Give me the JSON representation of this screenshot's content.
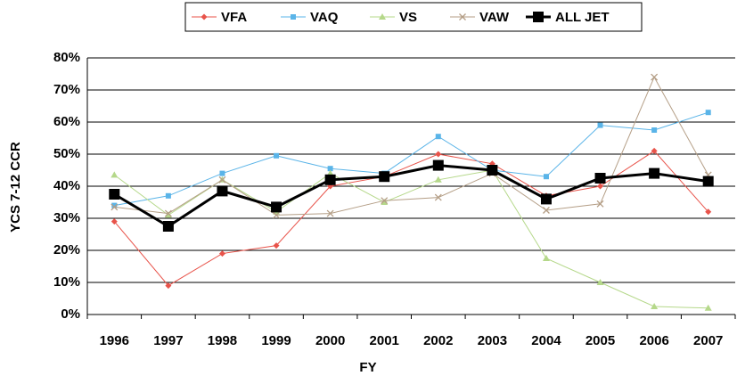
{
  "chart_data": {
    "type": "line",
    "y_label": "YCS 7-12 CCR",
    "x_label": "FY",
    "categories": [
      "1996",
      "1997",
      "1998",
      "1999",
      "2000",
      "2001",
      "2002",
      "2003",
      "2004",
      "2005",
      "2006",
      "2007"
    ],
    "series": [
      {
        "name": "VFA",
        "color": "#e8534a",
        "marker": "diamond",
        "values": [
          29,
          9,
          19,
          21.5,
          40,
          43,
          50,
          47,
          37,
          40,
          51,
          32
        ]
      },
      {
        "name": "VAQ",
        "color": "#5ab4e8",
        "marker": "square",
        "values": [
          34,
          37,
          44,
          49.5,
          45.5,
          44,
          55.5,
          45,
          43,
          59,
          57.5,
          63
        ]
      },
      {
        "name": "VS",
        "color": "#b5d88a",
        "marker": "triangle",
        "values": [
          43.5,
          31,
          42,
          32,
          44,
          35,
          42,
          45,
          17.5,
          10,
          2.5,
          2
        ]
      },
      {
        "name": "VAW",
        "color": "#b49e86",
        "marker": "x",
        "values": [
          33.5,
          31.5,
          42,
          31,
          31.5,
          35.5,
          36.5,
          44,
          32.5,
          34.5,
          74,
          43.5
        ]
      },
      {
        "name": "ALL JET",
        "color": "#000000",
        "marker": "big-square",
        "values": [
          37.5,
          27.5,
          38.5,
          33.5,
          42,
          43,
          46.5,
          45,
          36,
          42.5,
          44,
          41.5
        ]
      }
    ],
    "ylim": [
      0,
      80
    ],
    "yticks": [
      {
        "value": 0,
        "label": "0%"
      },
      {
        "value": 10,
        "label": "10%"
      },
      {
        "value": 20,
        "label": "20%"
      },
      {
        "value": 30,
        "label": "30%"
      },
      {
        "value": 40,
        "label": "40%"
      },
      {
        "value": 50,
        "label": "50%"
      },
      {
        "value": 60,
        "label": "60%"
      },
      {
        "value": 70,
        "label": "70%"
      },
      {
        "value": 80,
        "label": "80%"
      }
    ],
    "grid": true,
    "legend": "top"
  }
}
